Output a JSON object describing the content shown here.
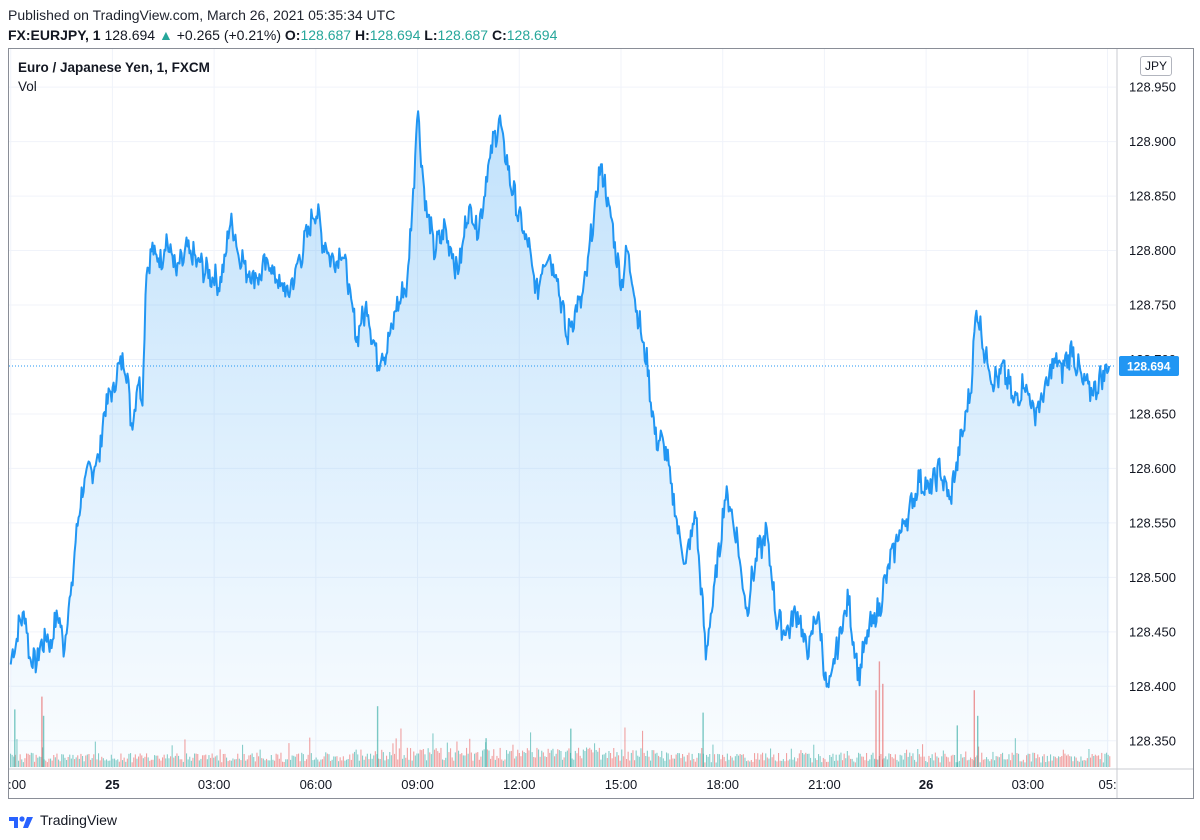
{
  "header": {
    "published": "Published on TradingView.com, March 26, 2021 05:35:34 UTC",
    "symbol": "FX:EURJPY, 1",
    "last": "128.694",
    "change": "+0.265 (+0.21%)",
    "o_label": "O:",
    "o_value": "128.687",
    "h_label": "H:",
    "h_value": "128.694",
    "l_label": "L:",
    "l_value": "128.687",
    "c_label": "C:",
    "c_value": "128.694"
  },
  "legend": {
    "title": "Euro / Japanese Yen, 1, FXCM",
    "volume": "Vol"
  },
  "currency_button": "JPY",
  "footer": {
    "brand": "TradingView"
  },
  "colors": {
    "line": "#2196f3",
    "up": "#26a69a",
    "down": "#ef5350",
    "price_label_bg": "#2196f3"
  },
  "chart_data": {
    "type": "area",
    "title": "Euro / Japanese Yen, 1, FXCM",
    "ylim": [
      128.325,
      128.985
    ],
    "y_ticks": [
      "128.950",
      "128.900",
      "128.850",
      "128.800",
      "128.750",
      "128.700",
      "128.650",
      "128.600",
      "128.550",
      "128.500",
      "128.450",
      "128.400",
      "128.350"
    ],
    "x_ticks": [
      ":00",
      "25",
      "03:00",
      "06:00",
      "09:00",
      "12:00",
      "15:00",
      "18:00",
      "21:00",
      "26",
      "03:00",
      "05:"
    ],
    "x_tick_hours": [
      -3,
      0,
      3,
      6,
      9,
      12,
      15,
      18,
      21,
      24,
      27,
      29.35
    ],
    "x_tick_bold": [
      false,
      true,
      false,
      false,
      false,
      false,
      false,
      false,
      false,
      true,
      false,
      false
    ],
    "x_range_hours": [
      -3.05,
      29.6
    ],
    "last_price": 128.694,
    "last_price_label": "128.694",
    "price_points": [
      [
        -3.0,
        128.42
      ],
      [
        -2.8,
        128.45
      ],
      [
        -2.6,
        128.47
      ],
      [
        -2.45,
        128.43
      ],
      [
        -2.3,
        128.42
      ],
      [
        -2.0,
        128.445
      ],
      [
        -1.8,
        128.44
      ],
      [
        -1.6,
        128.47
      ],
      [
        -1.45,
        128.435
      ],
      [
        -1.2,
        128.49
      ],
      [
        -1.0,
        128.56
      ],
      [
        -0.8,
        128.59
      ],
      [
        -0.6,
        128.6
      ],
      [
        -0.4,
        128.61
      ],
      [
        -0.2,
        128.66
      ],
      [
        0.0,
        128.67
      ],
      [
        0.25,
        128.7
      ],
      [
        0.45,
        128.69
      ],
      [
        0.55,
        128.635
      ],
      [
        0.75,
        128.68
      ],
      [
        0.9,
        128.67
      ],
      [
        1.0,
        128.785
      ],
      [
        1.2,
        128.8
      ],
      [
        1.4,
        128.79
      ],
      [
        1.6,
        128.81
      ],
      [
        1.9,
        128.78
      ],
      [
        2.2,
        128.8
      ],
      [
        2.5,
        128.79
      ],
      [
        2.8,
        128.78
      ],
      [
        3.2,
        128.77
      ],
      [
        3.5,
        128.83
      ],
      [
        3.7,
        128.8
      ],
      [
        4.0,
        128.78
      ],
      [
        4.3,
        128.775
      ],
      [
        4.6,
        128.79
      ],
      [
        4.9,
        128.77
      ],
      [
        5.2,
        128.76
      ],
      [
        5.5,
        128.79
      ],
      [
        5.8,
        128.82
      ],
      [
        6.0,
        128.84
      ],
      [
        6.2,
        128.81
      ],
      [
        6.5,
        128.79
      ],
      [
        6.8,
        128.8
      ],
      [
        7.0,
        128.76
      ],
      [
        7.2,
        128.72
      ],
      [
        7.5,
        128.75
      ],
      [
        7.8,
        128.7
      ],
      [
        8.1,
        128.71
      ],
      [
        8.4,
        128.75
      ],
      [
        8.7,
        128.77
      ],
      [
        8.9,
        128.87
      ],
      [
        9.0,
        128.935
      ],
      [
        9.2,
        128.85
      ],
      [
        9.5,
        128.8
      ],
      [
        9.8,
        128.82
      ],
      [
        10.2,
        128.78
      ],
      [
        10.5,
        128.84
      ],
      [
        10.8,
        128.82
      ],
      [
        11.1,
        128.88
      ],
      [
        11.4,
        128.92
      ],
      [
        11.7,
        128.87
      ],
      [
        12.0,
        128.83
      ],
      [
        12.3,
        128.8
      ],
      [
        12.5,
        128.76
      ],
      [
        12.8,
        128.8
      ],
      [
        13.1,
        128.78
      ],
      [
        13.4,
        128.72
      ],
      [
        13.6,
        128.74
      ],
      [
        13.9,
        128.76
      ],
      [
        14.2,
        128.83
      ],
      [
        14.4,
        128.88
      ],
      [
        14.7,
        128.83
      ],
      [
        15.0,
        128.77
      ],
      [
        15.2,
        128.8
      ],
      [
        15.5,
        128.74
      ],
      [
        15.8,
        128.69
      ],
      [
        16.0,
        128.63
      ],
      [
        16.3,
        128.62
      ],
      [
        16.6,
        128.56
      ],
      [
        16.9,
        128.51
      ],
      [
        17.2,
        128.56
      ],
      [
        17.5,
        128.43
      ],
      [
        17.8,
        128.5
      ],
      [
        18.1,
        128.58
      ],
      [
        18.4,
        128.54
      ],
      [
        18.7,
        128.47
      ],
      [
        19.0,
        128.52
      ],
      [
        19.3,
        128.54
      ],
      [
        19.6,
        128.46
      ],
      [
        19.9,
        128.45
      ],
      [
        20.2,
        128.47
      ],
      [
        20.5,
        128.43
      ],
      [
        20.8,
        128.47
      ],
      [
        21.1,
        128.39
      ],
      [
        21.4,
        128.44
      ],
      [
        21.7,
        128.48
      ],
      [
        22.0,
        128.41
      ],
      [
        22.3,
        128.45
      ],
      [
        22.6,
        128.47
      ],
      [
        22.9,
        128.51
      ],
      [
        23.2,
        128.54
      ],
      [
        23.5,
        128.56
      ],
      [
        23.8,
        128.59
      ],
      [
        24.1,
        128.58
      ],
      [
        24.4,
        128.6
      ],
      [
        24.7,
        128.57
      ],
      [
        25.0,
        128.62
      ],
      [
        25.3,
        128.67
      ],
      [
        25.5,
        128.75
      ],
      [
        25.7,
        128.71
      ],
      [
        26.0,
        128.68
      ],
      [
        26.3,
        128.69
      ],
      [
        26.6,
        128.66
      ],
      [
        26.9,
        128.68
      ],
      [
        27.2,
        128.65
      ],
      [
        27.5,
        128.67
      ],
      [
        27.8,
        128.7
      ],
      [
        28.0,
        128.69
      ],
      [
        28.3,
        128.71
      ],
      [
        28.6,
        128.68
      ],
      [
        28.9,
        128.67
      ],
      [
        29.1,
        128.68
      ],
      [
        29.3,
        128.69
      ],
      [
        29.4,
        128.694
      ]
    ],
    "volume_spikes": [
      {
        "h": -2.9,
        "v": 1.8
      },
      {
        "h": -2.1,
        "v": 2.2
      },
      {
        "h": -2.05,
        "v": 1.6
      },
      {
        "h": 7.8,
        "v": 1.9
      },
      {
        "h": 11.0,
        "v": 0.9
      },
      {
        "h": 13.5,
        "v": 1.2
      },
      {
        "h": 17.4,
        "v": 1.7
      },
      {
        "h": 22.5,
        "v": 2.4
      },
      {
        "h": 22.6,
        "v": 3.3
      },
      {
        "h": 22.7,
        "v": 2.6
      },
      {
        "h": 24.9,
        "v": 1.3
      },
      {
        "h": 25.4,
        "v": 2.4
      },
      {
        "h": 25.5,
        "v": 1.6
      }
    ]
  }
}
